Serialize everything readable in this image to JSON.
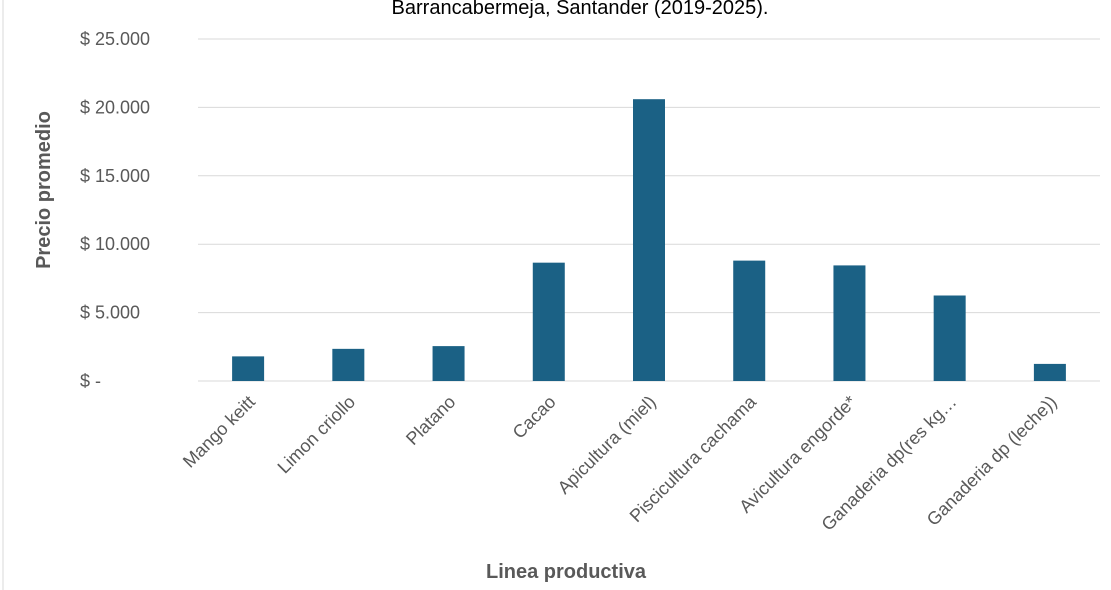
{
  "chart_data": {
    "type": "bar",
    "title": "Barrancabermeja, Santander (2019-2025).",
    "xlabel": "Linea productiva",
    "ylabel": "Precio promedio",
    "categories": [
      "Mango keitt",
      "Limon criollo",
      "Platano",
      "Cacao",
      "Apicultura (miel)",
      "Piscicultura cachama",
      "Avicultura engorde*",
      "Ganaderia dp(res kg…",
      "Ganaderia dp (leche))"
    ],
    "series": [
      {
        "values": [
          1800,
          2350,
          2550,
          8650,
          20600,
          8800,
          8450,
          6250,
          1250
        ]
      }
    ],
    "ylim": [
      0,
      25000
    ],
    "yticks": [
      0,
      5000,
      10000,
      15000,
      20000,
      25000
    ],
    "ytick_labels": [
      "$ -",
      "$ 5.000",
      "$ 10.000",
      "$ 15.000",
      "$ 20.000",
      "$ 25.000"
    ],
    "grid": true,
    "colors": {
      "bar": "#1b6185",
      "grid": "#d9d9d9",
      "text": "#595959"
    }
  }
}
